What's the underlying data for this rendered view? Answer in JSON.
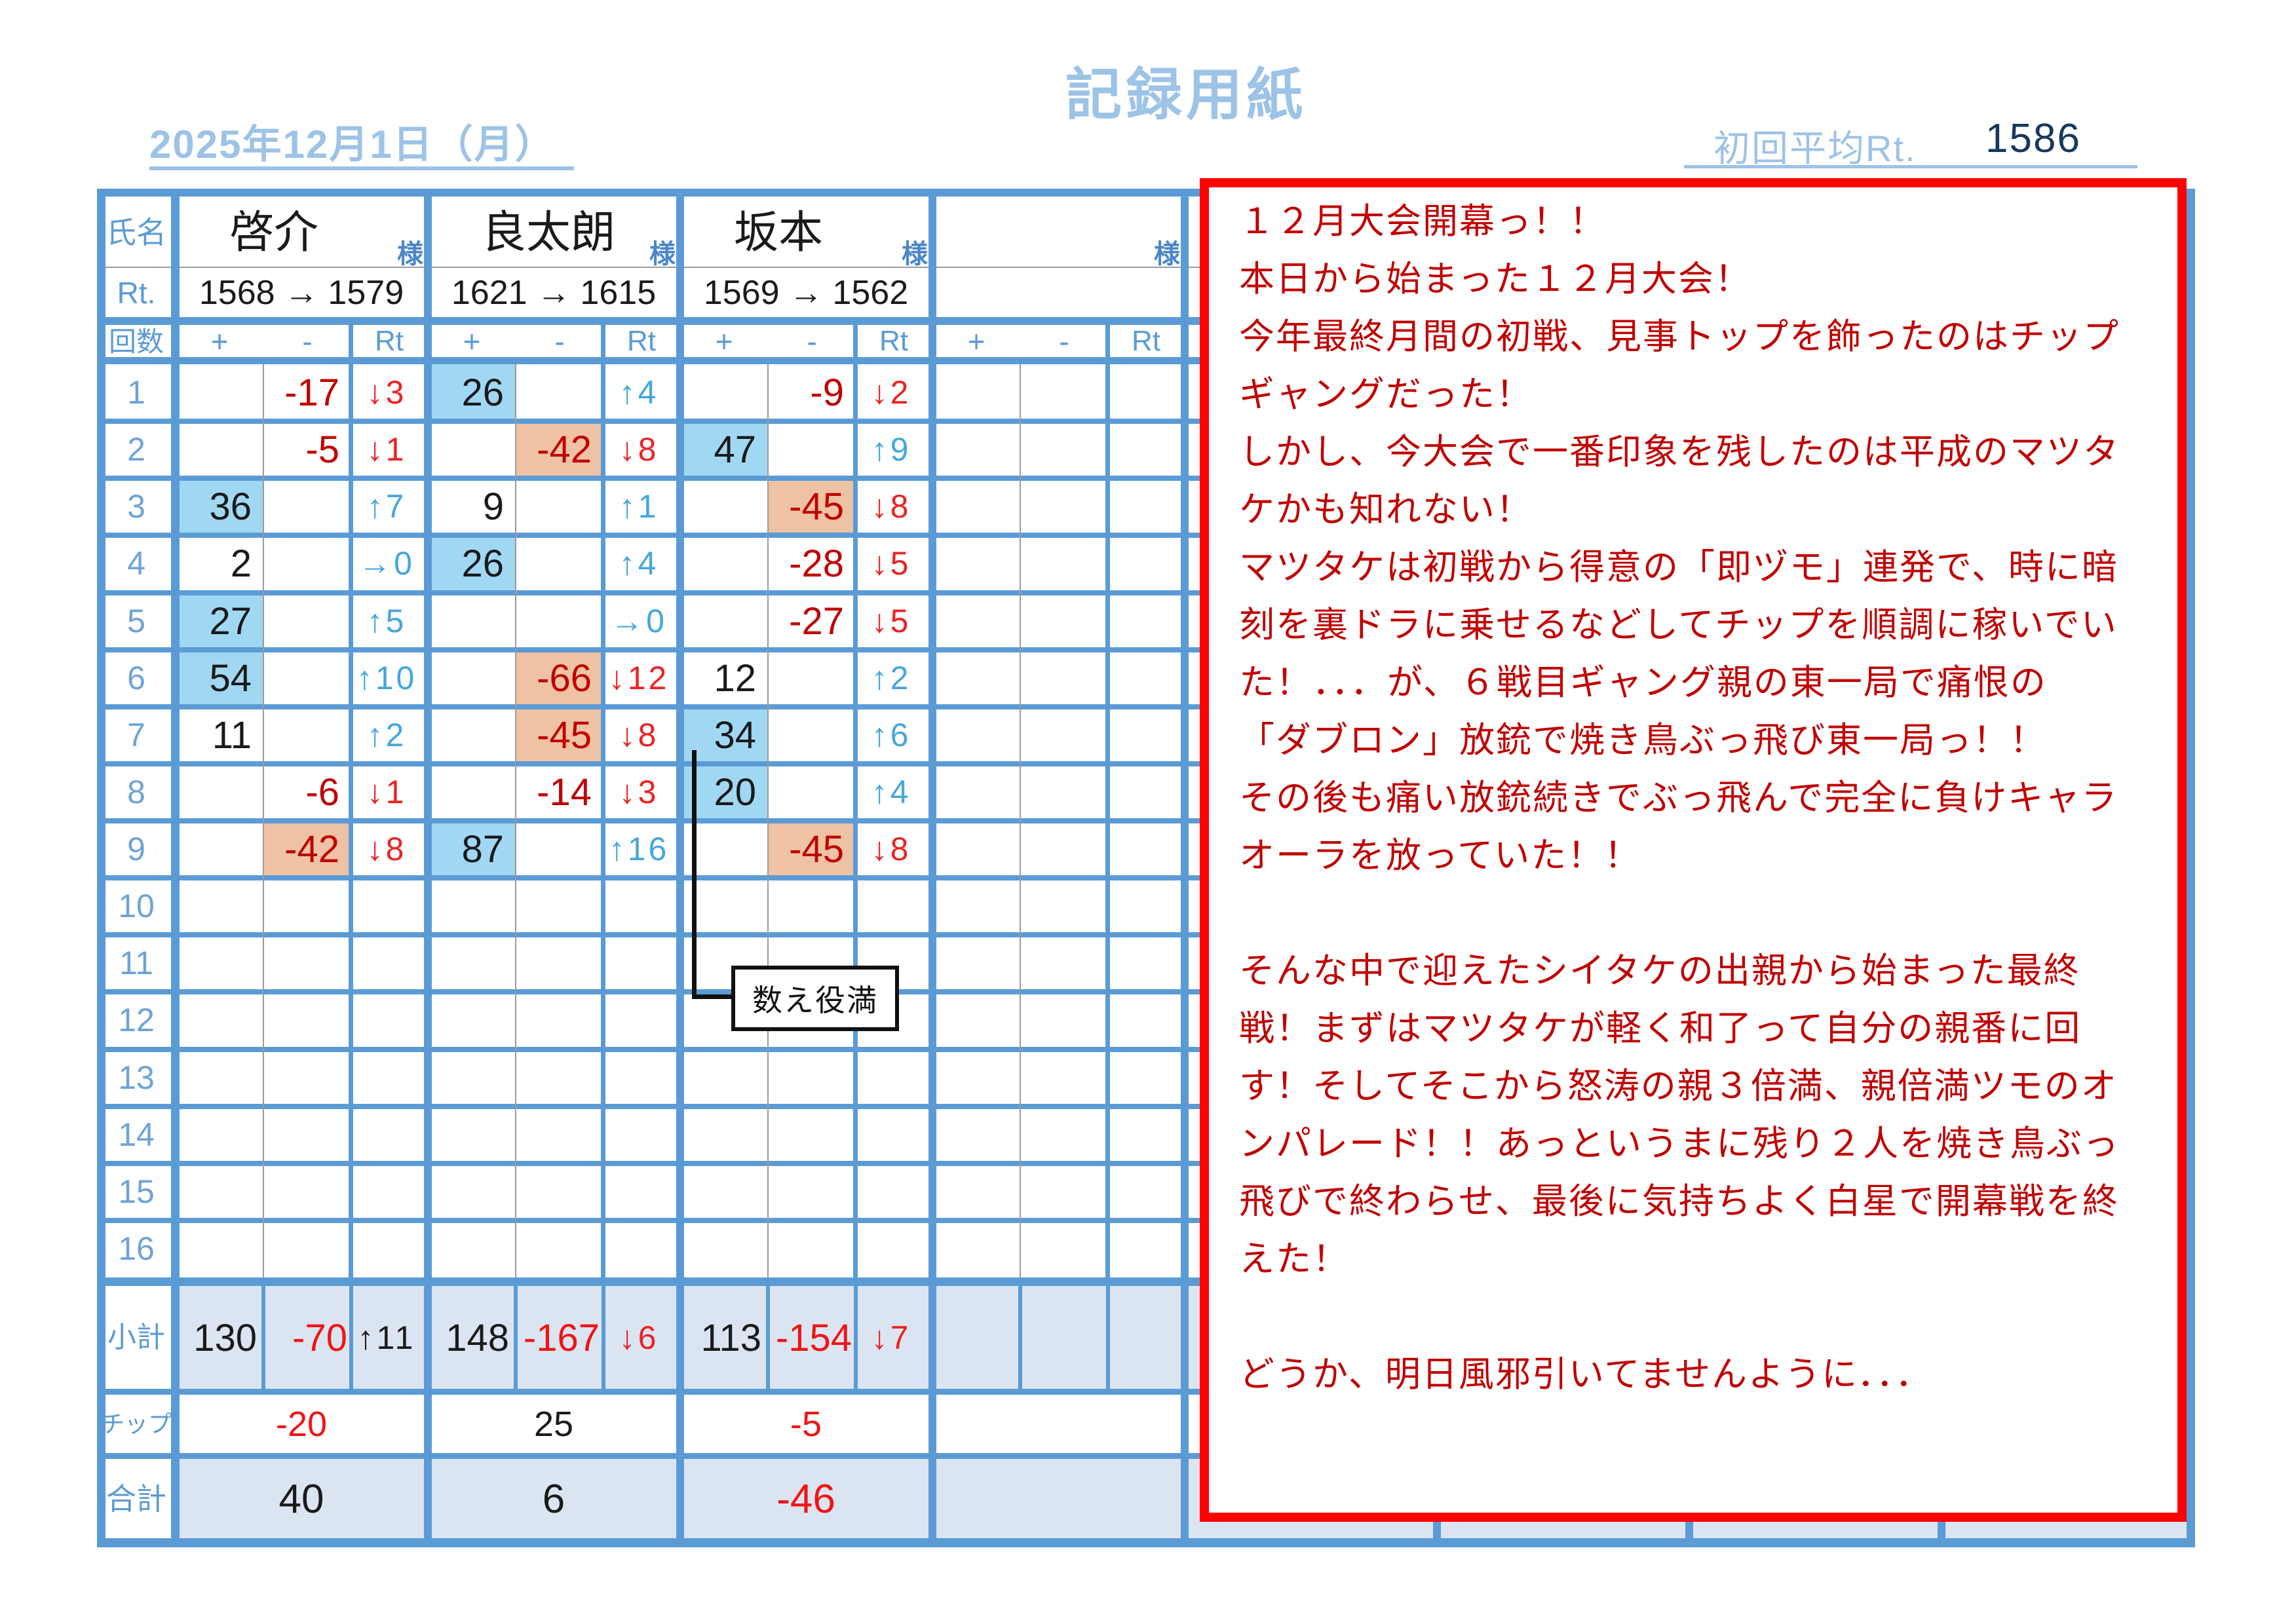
{
  "page": {
    "title": "記録用紙",
    "date": "2025年12月1日（月）",
    "avg_rt_label": "初回平均Rt.",
    "avg_rt_value": "1586"
  },
  "table": {
    "corner_label": "氏名",
    "rt_label": "Rt.",
    "rounds_label": "回数",
    "col_headers": {
      "plus": "+",
      "minus": "-",
      "rt": "Rt"
    },
    "honorific": "様",
    "row_numbers": [
      "1",
      "2",
      "3",
      "4",
      "5",
      "6",
      "7",
      "8",
      "9",
      "10",
      "11",
      "12",
      "13",
      "14",
      "15",
      "16"
    ],
    "summary_labels": {
      "subtotal": "小計",
      "chips": "チップ",
      "total": "合計"
    },
    "players": [
      {
        "name": "啓介",
        "rt_change": "1568 → 1579",
        "rounds": [
          {
            "m": "-17",
            "r": "↓3"
          },
          {
            "m": "-5",
            "r": "↓1"
          },
          {
            "p": "36",
            "hp": true,
            "r": "↑7"
          },
          {
            "p": "2",
            "r": "→0"
          },
          {
            "p": "27",
            "hp": true,
            "r": "↑5"
          },
          {
            "p": "54",
            "hp": true,
            "r": "↑10"
          },
          {
            "p": "11",
            "r": "↑2"
          },
          {
            "m": "-6",
            "r": "↓1"
          },
          {
            "m": "-42",
            "hm": true,
            "r": "↓8"
          },
          {},
          {},
          {},
          {},
          {},
          {},
          {}
        ],
        "subtotal": {
          "p": "130",
          "m": "-70",
          "r": "↑11",
          "r_color": "black"
        },
        "chips": "-20",
        "total": "40"
      },
      {
        "name": "良太朗",
        "rt_change": "1621 → 1615",
        "rounds": [
          {
            "p": "26",
            "hp": true,
            "r": "↑4"
          },
          {
            "m": "-42",
            "hm": true,
            "r": "↓8"
          },
          {
            "p": "9",
            "r": "↑1"
          },
          {
            "p": "26",
            "hp": true,
            "r": "↑4"
          },
          {
            "r": "→0"
          },
          {
            "m": "-66",
            "hm": true,
            "r": "↓12"
          },
          {
            "m": "-45",
            "hm": true,
            "r": "↓8"
          },
          {
            "m": "-14",
            "r": "↓3"
          },
          {
            "p": "87",
            "hp": true,
            "r": "↑16"
          },
          {},
          {},
          {},
          {},
          {},
          {},
          {}
        ],
        "subtotal": {
          "p": "148",
          "m": "-167",
          "r": "↓6"
        },
        "chips": "25",
        "total": "6"
      },
      {
        "name": "坂本",
        "rt_change": "1569 → 1562",
        "rounds": [
          {
            "m": "-9",
            "r": "↓2"
          },
          {
            "p": "47",
            "hp": true,
            "r": "↑9"
          },
          {
            "m": "-45",
            "hm": true,
            "r": "↓8"
          },
          {
            "m": "-28",
            "r": "↓5"
          },
          {
            "m": "-27",
            "r": "↓5"
          },
          {
            "p": "12",
            "r": "↑2"
          },
          {
            "p": "34",
            "hp": true,
            "r": "↑6"
          },
          {
            "p": "20",
            "hp": true,
            "r": "↑4"
          },
          {
            "m": "-45",
            "hm": true,
            "r": "↓8"
          },
          {},
          {},
          {},
          {},
          {},
          {},
          {}
        ],
        "subtotal": {
          "p": "113",
          "m": "-154",
          "r": "↓7"
        },
        "chips": "-5",
        "total": "-46"
      },
      {
        "name": "",
        "rt_change": "",
        "rounds": [
          {},
          {},
          {},
          {},
          {},
          {},
          {},
          {},
          {},
          {},
          {},
          {},
          {},
          {},
          {},
          {}
        ],
        "subtotal": {},
        "chips": "",
        "total": ""
      }
    ]
  },
  "callout": {
    "text": "数え役満"
  },
  "commentary": {
    "lines": [
      "１２月大会開幕っ！！",
      "本日から始まった１２月大会！",
      "今年最終月間の初戦、見事トップを飾ったのはチップ",
      "ギャングだった！",
      "しかし、今大会で一番印象を残したのは平成のマツタ",
      "ケかも知れない！",
      "マツタケは初戦から得意の「即ヅモ」連発で、時に暗",
      "刻を裏ドラに乗せるなどしてチップを順調に稼いでい",
      "た！．．．が、６戦目ギャング親の東一局で痛恨の",
      "「ダブロン」放銃で焼き鳥ぶっ飛び東一局っ！！",
      "その後も痛い放銃続きでぶっ飛んで完全に負けキャラ",
      "オーラを放っていた！！",
      "",
      "そんな中で迎えたシイタケの出親から始まった最終",
      "戦！まずはマツタケが軽く和了って自分の親番に回",
      "す！そしてそこから怒涛の親３倍満、親倍満ツモのオ",
      "ンパレード！！あっというまに残り２人を焼き鳥ぶっ",
      "飛びで終わらせ、最後に気持ちよく白星で開幕戦を終",
      "えた！",
      "",
      "どうか、明日風邪引いてませんように．．．"
    ]
  },
  "colors": {
    "border_blue": "#5b9bd5",
    "gray_line": "#9b9b9b",
    "label_blue": "#5b9bd5",
    "row_number_blue": "#6fa3d8",
    "honorific_blue": "#4a86c8",
    "up_blue": "#45a7dc",
    "down_red": "#ee2222",
    "minus_dark_red": "#c00000",
    "bright_red": "#f01414",
    "ink": "#1a1a1a",
    "highlight_blue": "#a0d8f4",
    "highlight_orange": "#efc2a4",
    "summary_fill": "#dbe5f2",
    "title_blue": "#9dc3e6",
    "avg_value_navy": "#17375e",
    "commentary_red": "#c00000",
    "callout_ink": "#111111",
    "red_border": "#fe0000"
  }
}
